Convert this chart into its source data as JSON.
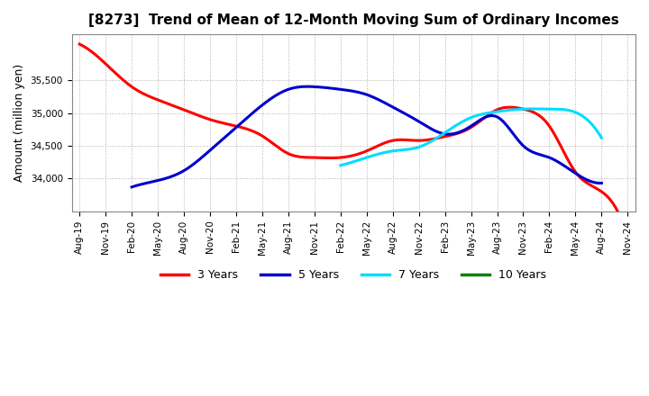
{
  "title": "[8273]  Trend of Mean of 12-Month Moving Sum of Ordinary Incomes",
  "ylabel": "Amount (million yen)",
  "background_color": "#ffffff",
  "grid_color": "#b0b0b0",
  "yticks": [
    34000,
    34500,
    35000,
    35500
  ],
  "ylim": [
    33500,
    36200
  ],
  "x_labels": [
    "Aug-19",
    "Nov-19",
    "Feb-20",
    "May-20",
    "Aug-20",
    "Nov-20",
    "Feb-21",
    "May-21",
    "Aug-21",
    "Nov-21",
    "Feb-22",
    "May-22",
    "Aug-22",
    "Nov-22",
    "Feb-23",
    "May-23",
    "Aug-23",
    "Nov-23",
    "Feb-24",
    "May-24",
    "Aug-24",
    "Nov-24"
  ],
  "series": {
    "3 Years": {
      "color": "#ff0000",
      "data_x": [
        0,
        1,
        2,
        3,
        4,
        5,
        6,
        7,
        8,
        9,
        10,
        11,
        12,
        13,
        14,
        15,
        16,
        17,
        18,
        19,
        20,
        21
      ],
      "data_y": [
        36050,
        35750,
        35400,
        35200,
        35050,
        34900,
        34800,
        34650,
        34380,
        34320,
        34320,
        34420,
        34580,
        34580,
        34640,
        34780,
        35050,
        35060,
        34800,
        34100,
        33800,
        33100
      ]
    },
    "5 Years": {
      "color": "#0000cc",
      "data_x": [
        2,
        3,
        4,
        5,
        6,
        7,
        8,
        9,
        10,
        11,
        12,
        13,
        14,
        15,
        16,
        17,
        18,
        19,
        20
      ],
      "data_y": [
        33870,
        33970,
        34120,
        34430,
        34780,
        35120,
        35360,
        35400,
        35360,
        35280,
        35090,
        34870,
        34680,
        34800,
        34940,
        34500,
        34320,
        34080,
        33930
      ]
    },
    "7 Years": {
      "color": "#00ddff",
      "data_x": [
        10,
        11,
        12,
        13,
        14,
        15,
        16,
        17,
        18,
        19,
        20
      ],
      "data_y": [
        34200,
        34320,
        34420,
        34480,
        34700,
        34930,
        35020,
        35060,
        35060,
        35010,
        34620
      ]
    },
    "10 Years": {
      "color": "#008000",
      "data_x": [],
      "data_y": []
    }
  },
  "legend_labels": [
    "3 Years",
    "5 Years",
    "7 Years",
    "10 Years"
  ],
  "legend_colors": [
    "#ff0000",
    "#0000cc",
    "#00ddff",
    "#008000"
  ]
}
